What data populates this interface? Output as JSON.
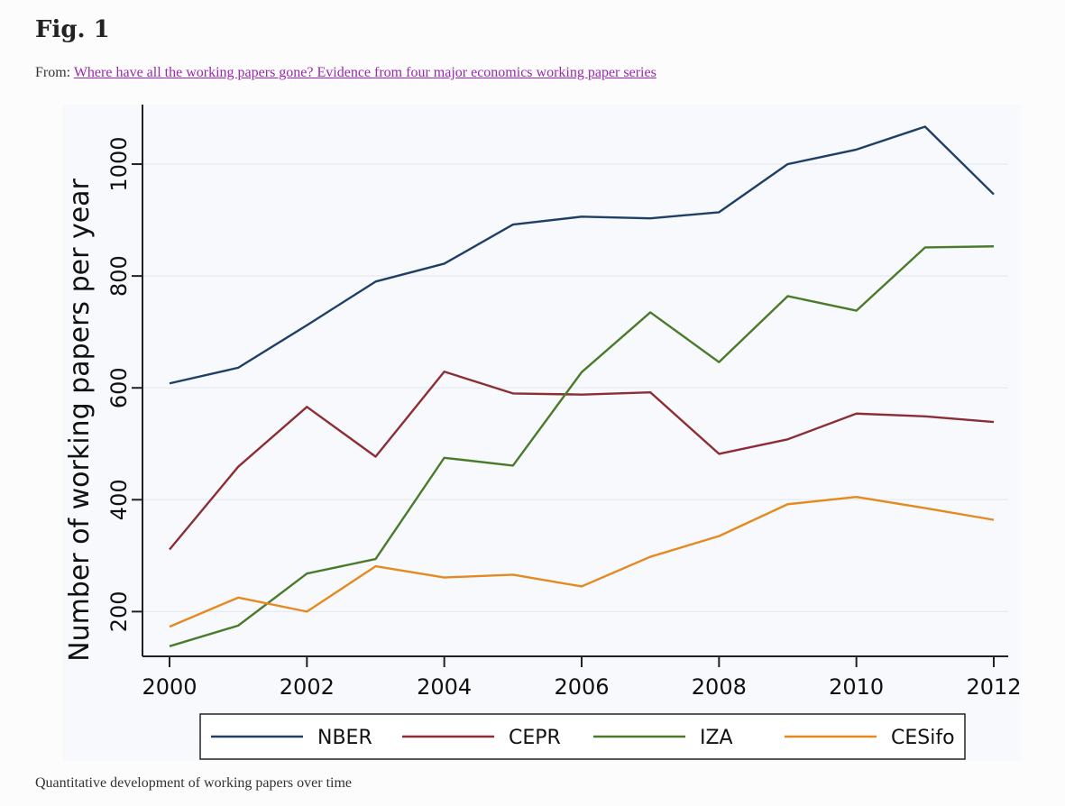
{
  "figure": {
    "title": "Fig. 1",
    "source_prefix": "From: ",
    "source_link_text": "Where have all the working papers gone? Evidence from four major economics working paper series",
    "caption": "Quantitative development of working papers over time"
  },
  "colors": {
    "NBER": "#1f3f66",
    "CEPR": "#8b2e35",
    "IZA": "#4a7a2a",
    "CESifo": "#e58a1f",
    "link": "#9c27b0"
  },
  "chart_data": {
    "type": "line",
    "title": "",
    "xlabel": "",
    "ylabel": "Number of working papers per year",
    "x": [
      2000,
      2001,
      2002,
      2003,
      2004,
      2005,
      2006,
      2007,
      2008,
      2009,
      2010,
      2011,
      2012
    ],
    "xticks": [
      2000,
      2002,
      2004,
      2006,
      2008,
      2010,
      2012
    ],
    "yticks": [
      200,
      400,
      600,
      800,
      1000
    ],
    "xlim": [
      2000,
      2012
    ],
    "ylim": [
      120,
      1100
    ],
    "grid": "horizontal",
    "legend": "bottom",
    "series": [
      {
        "name": "NBER",
        "values": [
          608,
          636,
          712,
          790,
          822,
          892,
          906,
          903,
          914,
          1000,
          1026,
          1067,
          946
        ]
      },
      {
        "name": "CEPR",
        "values": [
          311,
          459,
          566,
          477,
          629,
          590,
          588,
          592,
          482,
          508,
          554,
          549,
          539
        ]
      },
      {
        "name": "IZA",
        "values": [
          138,
          175,
          268,
          294,
          475,
          461,
          628,
          735,
          646,
          764,
          738,
          851,
          853
        ]
      },
      {
        "name": "CESifo",
        "values": [
          173,
          225,
          200,
          281,
          261,
          266,
          245,
          298,
          335,
          392,
          405,
          385,
          364
        ]
      }
    ]
  }
}
